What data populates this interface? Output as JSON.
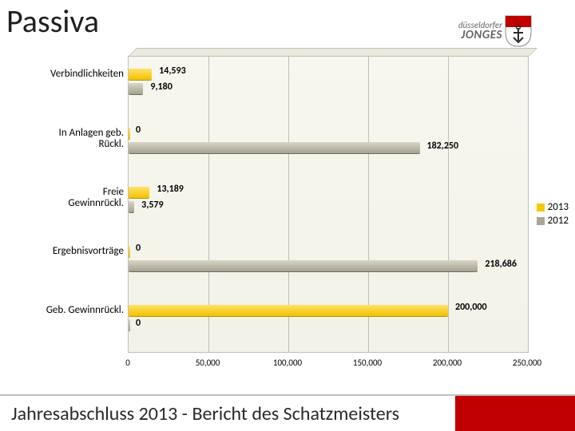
{
  "title": "Passiva",
  "logo": {
    "line1": "düsseldorfer",
    "line2": "JONGES",
    "shield_top": "#c00000",
    "shield_bot": "#ffffff",
    "anchor": "#2a2a2a"
  },
  "footer": "Jahresabschluss 2013  -  Bericht des Schatzmeisters",
  "chart": {
    "type": "bar-horizontal-grouped",
    "xlim": [
      0,
      250000
    ],
    "xticks": [
      0,
      50000,
      100000,
      150000,
      200000,
      250000
    ],
    "xtick_labels": [
      "0",
      "50,000",
      "100,000",
      "150,000",
      "200,000",
      "250,000"
    ],
    "plot_bg": "#f5f5ec",
    "grid_color": "#bfbfbf",
    "categories": [
      {
        "label": "Verbindlichkeiten",
        "y2013": 14593,
        "y2012": 9180,
        "l13": "14,593",
        "l12": "9,180"
      },
      {
        "label": "In Anlagen geb.\nRückl.",
        "y2013": 0,
        "y2012": 182250,
        "l13": "0",
        "l12": "182,250"
      },
      {
        "label": "Freie\nGewinnrückl.",
        "y2013": 13189,
        "y2012": 3579,
        "l13": "13,189",
        "l12": "3,579"
      },
      {
        "label": "Ergebnisvorträge",
        "y2013": 0,
        "y2012": 218686,
        "l13": "0",
        "l12": "218,686"
      },
      {
        "label": "Geb. Gewinnrückl.",
        "y2013": 200000,
        "y2012": 0,
        "l13": "200,000",
        "l12": "0"
      }
    ],
    "series": [
      {
        "name": "2013",
        "color": "#f7c800"
      },
      {
        "name": "2012",
        "color": "#a9a694"
      }
    ]
  }
}
